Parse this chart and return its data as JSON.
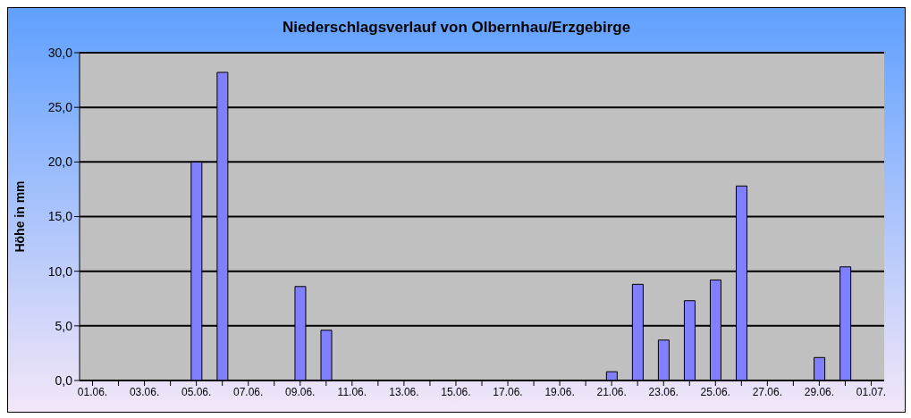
{
  "chart_data": {
    "type": "bar",
    "title": "Niederschlagsverlauf von Olbernhau/Erzgebirge",
    "ylabel": "Höhe in  mm",
    "categories": [
      "01.06.",
      null,
      "03.06.",
      null,
      "05.06.",
      null,
      "07.06.",
      null,
      "09.06.",
      null,
      "11.06.",
      null,
      "13.06.",
      null,
      "15.06.",
      null,
      "17.06.",
      null,
      "19.06.",
      null,
      "21.06.",
      null,
      "23.06.",
      null,
      "25.06.",
      null,
      "27.06.",
      null,
      "29.06.",
      null,
      "01.07."
    ],
    "values": [
      0,
      0,
      0,
      0,
      20.0,
      28.2,
      0,
      0,
      8.6,
      4.6,
      0,
      0,
      0,
      0,
      0,
      0,
      0,
      0,
      0,
      0,
      0.8,
      8.8,
      3.7,
      7.3,
      9.2,
      17.8,
      0,
      0,
      2.1,
      10.4,
      null
    ],
    "color": "#8080ff",
    "ylim": [
      0,
      30
    ],
    "yticks": [
      {
        "value": 0,
        "label": "0,0"
      },
      {
        "value": 5,
        "label": "5,0"
      },
      {
        "value": 10,
        "label": "10,0"
      },
      {
        "value": 15,
        "label": "15,0"
      },
      {
        "value": 20,
        "label": "20,0"
      },
      {
        "value": 25,
        "label": "25,0"
      },
      {
        "value": 30,
        "label": "30,0"
      }
    ],
    "grid": "y"
  }
}
